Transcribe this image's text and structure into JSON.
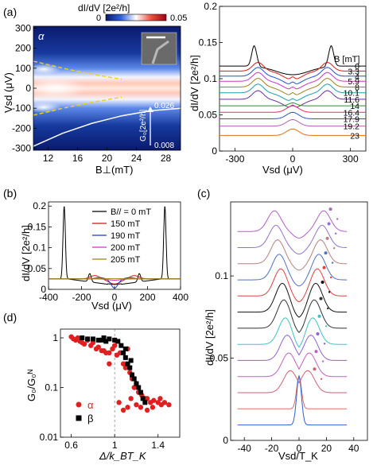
{
  "panel_labels": {
    "a": "(a)",
    "b": "(b)",
    "c": "(c)",
    "d": "(d)"
  },
  "colors": {
    "map_low": "#0a1a6e",
    "map_mid": "#ffffff",
    "map_high": "#c8101a",
    "traces": [
      "#000000",
      "#d81b1b",
      "#1f4fc8",
      "#cc33cc",
      "#a0801a",
      "#1b9fb0",
      "#6a2fa0",
      "#2f8f2f",
      "#e0305a",
      "#3050d0",
      "#b060b0",
      "#e07010"
    ],
    "alpha": "#e02020",
    "beta": "#000000"
  },
  "chart_data": [
    {
      "id": "a-left",
      "type": "heatmap",
      "xlabel": "B⊥(mT)",
      "ylabel": "Vsd (μV)",
      "xlim": [
        10,
        30
      ],
      "ylim": [
        -310,
        310
      ],
      "xticks": [
        12,
        16,
        20,
        24,
        28
      ],
      "yticks": [
        -300,
        -200,
        -100,
        0,
        100,
        200,
        300
      ],
      "colorbar": {
        "title": "dI/dV [2e²/h]",
        "min_label": "0",
        "max_label": "0.05",
        "range": [
          0,
          0.05
        ]
      },
      "annotations": {
        "alpha": "α",
        "g0": "G₀[2e²/h]",
        "top": "0.026",
        "bottom": "0.008"
      },
      "g0_curve": {
        "x": [
          10,
          14,
          18,
          22,
          26,
          30
        ],
        "y": [
          -290,
          -225,
          -175,
          -138,
          -112,
          -100
        ]
      },
      "guide_curve": {
        "x": [
          10,
          14,
          18,
          22
        ],
        "y": [
          135,
          100,
          70,
          45
        ]
      }
    },
    {
      "id": "a-right",
      "type": "line",
      "xlabel": "Vsd (μV)",
      "ylabel": "dI/dV [2e²/h]",
      "xlim": [
        -380,
        380
      ],
      "ylim": [
        0,
        0.2
      ],
      "xticks": [
        -300,
        0,
        300
      ],
      "yticks": [
        0,
        0.05,
        0.1,
        0.15,
        0.2
      ],
      "legend_title": "B [mT]",
      "series": [
        {
          "name": "0",
          "offset": 0.1175,
          "kind": "peak"
        },
        {
          "name": "3.3",
          "offset": 0.1105,
          "kind": "dip"
        },
        {
          "name": "4",
          "offset": 0.1035,
          "kind": "dip"
        },
        {
          "name": "5.9",
          "offset": 0.0965,
          "kind": "dip"
        },
        {
          "name": "8",
          "offset": 0.0885,
          "kind": "dip"
        },
        {
          "name": "10.1",
          "offset": 0.0805,
          "kind": "dip"
        },
        {
          "name": "11.6",
          "offset": 0.0715,
          "kind": "dip"
        },
        {
          "name": "14",
          "offset": 0.0625,
          "kind": "flat"
        },
        {
          "name": "16.4",
          "offset": 0.0535,
          "kind": "bump"
        },
        {
          "name": "17.9",
          "offset": 0.0445,
          "kind": "bump"
        },
        {
          "name": "19.2",
          "offset": 0.0345,
          "kind": "bump"
        },
        {
          "name": "23",
          "offset": 0.0215,
          "kind": "bump"
        }
      ]
    },
    {
      "id": "b",
      "type": "line",
      "xlabel": "Vsd (μV)",
      "ylabel": "dI/dV [2e²/h]",
      "xlim": [
        -400,
        400
      ],
      "ylim": [
        0,
        0.21
      ],
      "xticks": [
        -400,
        -200,
        0,
        200,
        400
      ],
      "yticks": [
        0,
        0.05,
        0.1,
        0.15,
        0.2
      ],
      "series": [
        {
          "name": "B// = 0 mT",
          "color": "#000000"
        },
        {
          "name": "150 mT",
          "color": "#c81818"
        },
        {
          "name": "190 mT",
          "color": "#1f3fc0"
        },
        {
          "name": "200 mT",
          "color": "#d030d0"
        },
        {
          "name": "205 mT",
          "color": "#a08010"
        }
      ]
    },
    {
      "id": "c",
      "type": "line",
      "xlabel": "Vsd/T_K",
      "ylabel": "dI/dV [2e²/h]",
      "xlim": [
        -50,
        50
      ],
      "ylim": [
        0,
        0.145
      ],
      "xticks": [
        -40,
        -20,
        0,
        20,
        40
      ],
      "yticks": [
        0,
        0.05,
        0.1
      ],
      "traces": 13
    },
    {
      "id": "d",
      "type": "scatter",
      "xlabel": "Δ/k_BT_K",
      "ylabel": "G₀/G₀ᴺ",
      "xlim": [
        0.5,
        1.6
      ],
      "ylim": [
        0.01,
        1.5
      ],
      "yscale": "log",
      "xticks": [
        0.6,
        1,
        1.4
      ],
      "yticks": [
        0.01,
        0.1,
        1
      ],
      "series": [
        {
          "name": "α",
          "color": "#e02020",
          "marker": "circle",
          "x": [
            0.6,
            0.62,
            0.64,
            0.66,
            0.68,
            0.7,
            0.72,
            0.75,
            0.78,
            0.8,
            0.83,
            0.85,
            0.88,
            0.9,
            0.92,
            0.95,
            0.98,
            1.0,
            1.02,
            1.05,
            1.08,
            1.1,
            1.12,
            1.14,
            1.16,
            1.18,
            1.2,
            1.22,
            1.25,
            1.28,
            1.3,
            1.33,
            1.36,
            1.4,
            1.43,
            1.46,
            1.5,
            0.95,
            1.0,
            1.04,
            1.08,
            1.12,
            1.15,
            1.2,
            1.24,
            1.3,
            1.35,
            1.42
          ],
          "y": [
            1.05,
            0.95,
            0.9,
            1.0,
            0.85,
            0.8,
            0.75,
            0.9,
            0.7,
            0.8,
            0.6,
            0.65,
            0.55,
            0.55,
            0.5,
            0.5,
            0.6,
            0.7,
            0.45,
            0.5,
            0.3,
            0.25,
            0.6,
            0.2,
            0.15,
            0.1,
            0.12,
            0.08,
            0.07,
            0.06,
            0.06,
            0.05,
            0.055,
            0.05,
            0.045,
            0.05,
            0.045,
            0.3,
            0.9,
            0.05,
            0.035,
            0.04,
            0.06,
            0.045,
            0.04,
            0.035,
            0.04,
            0.06
          ]
        },
        {
          "name": "β",
          "color": "#000000",
          "marker": "square",
          "x": [
            0.7,
            0.75,
            0.8,
            0.85,
            0.9,
            0.95,
            1.0,
            1.03,
            1.06,
            1.08,
            1.1,
            1.12,
            1.14,
            1.16,
            1.18,
            1.2,
            1.22,
            1.24,
            1.26,
            1.28,
            1.15,
            1.1,
            0.88,
            0.92
          ],
          "y": [
            1.0,
            0.95,
            0.95,
            0.9,
            1.0,
            0.95,
            0.9,
            0.85,
            0.7,
            0.5,
            0.4,
            0.3,
            0.25,
            0.18,
            0.15,
            0.12,
            0.1,
            0.08,
            0.06,
            0.05,
            0.35,
            0.6,
            0.9,
            0.85
          ]
        }
      ]
    }
  ]
}
